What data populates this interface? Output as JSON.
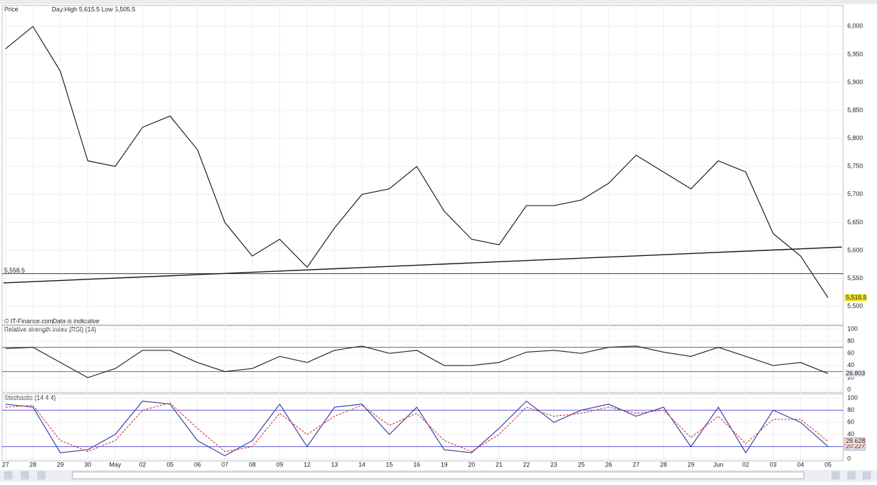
{
  "chart_data": [
    {
      "type": "line",
      "title": "Price",
      "subtitle": "Day:High 5,615.5 Low 5,505.5",
      "credit": "© IT-Finance.com",
      "note": "Data is indicative",
      "categories": [
        "27",
        "28",
        "29",
        "30",
        "May",
        "02",
        "05",
        "06",
        "07",
        "08",
        "09",
        "12",
        "13",
        "14",
        "15",
        "16",
        "19",
        "20",
        "21",
        "22",
        "23",
        "25",
        "26",
        "27",
        "28",
        "29",
        "Jun",
        "02",
        "03",
        "04",
        "05"
      ],
      "values": [
        5960,
        6000,
        5920,
        5760,
        5750,
        5820,
        5840,
        5780,
        5650,
        5590,
        5620,
        5570,
        5640,
        5700,
        5710,
        5750,
        5670,
        5620,
        5610,
        5680,
        5680,
        5690,
        5720,
        5770,
        5740,
        5710,
        5760,
        5740,
        5630,
        5590,
        5515.5
      ],
      "color": "#1a1a1a",
      "ylim": [
        5478,
        6030
      ],
      "yticks": [
        {
          "value": 5500,
          "label": "5,500"
        },
        {
          "value": 5550,
          "label": "5,550"
        },
        {
          "value": 5600,
          "label": "5,600"
        },
        {
          "value": 5650,
          "label": "5,650"
        },
        {
          "value": 5700,
          "label": "5,700"
        },
        {
          "value": 5750,
          "label": "5,750"
        },
        {
          "value": 5800,
          "label": "5,800"
        },
        {
          "value": 5850,
          "label": "5,850"
        },
        {
          "value": 5900,
          "label": "5,900"
        },
        {
          "value": 5950,
          "label": "5,950"
        },
        {
          "value": 6000,
          "label": "6,000"
        }
      ],
      "hline": {
        "value": 5558.5,
        "label": "5,558.5"
      },
      "last_price": {
        "value": 5515.5,
        "label": "5,515.5"
      },
      "trendline": [
        5542,
        5606
      ],
      "grid": true
    },
    {
      "type": "line",
      "title": "Relative strength index (RSI) (14)",
      "values": [
        68,
        70,
        45,
        20,
        35,
        65,
        65,
        45,
        30,
        35,
        55,
        45,
        65,
        72,
        60,
        65,
        40,
        40,
        45,
        62,
        65,
        60,
        70,
        72,
        62,
        55,
        70,
        55,
        40,
        45,
        26.803
      ],
      "color": "#222",
      "ylim": [
        0,
        100
      ],
      "yticks": [
        0,
        20,
        40,
        60,
        80,
        100
      ],
      "levels": [
        30,
        70
      ]
    },
    {
      "type": "line",
      "title": "Stochastic (14 4 4)",
      "series": [
        {
          "color": "#3a3aa8",
          "values": [
            90,
            85,
            10,
            15,
            40,
            95,
            90,
            30,
            5,
            30,
            90,
            20,
            85,
            90,
            40,
            85,
            15,
            10,
            50,
            95,
            60,
            80,
            90,
            70,
            85,
            20,
            85,
            10,
            80,
            60,
            20.227
          ]
        },
        {
          "color": "#d04040",
          "values": [
            85,
            88,
            30,
            12,
            30,
            80,
            92,
            50,
            12,
            20,
            75,
            40,
            70,
            88,
            55,
            75,
            30,
            12,
            40,
            85,
            70,
            75,
            85,
            75,
            80,
            35,
            70,
            25,
            65,
            65,
            28.628
          ]
        }
      ],
      "ylim": [
        0,
        100
      ],
      "yticks": [
        0,
        20,
        40,
        60,
        80,
        100
      ],
      "levels": [
        20,
        80
      ]
    }
  ]
}
